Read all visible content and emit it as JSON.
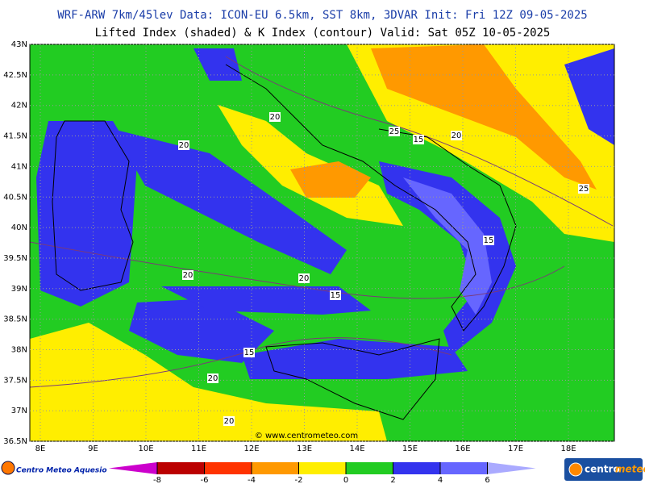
{
  "header": {
    "line1": "WRF-ARW 7km/45lev   Data: ICON-EU 6.5km, SST 8km, 3DVAR   Init: Fri 12Z 09-05-2025",
    "line2": "Lifted Index (shaded) & K Index (contour)   Valid: Sat 05Z 10-05-2025"
  },
  "map": {
    "lat_labels": [
      "43N",
      "42.5N",
      "42N",
      "41.5N",
      "41N",
      "40.5N",
      "40N",
      "39.5N",
      "39N",
      "38.5N",
      "38N",
      "37.5N",
      "37N",
      "36.5N"
    ],
    "lon_labels": [
      "8E",
      "9E",
      "10E",
      "11E",
      "12E",
      "13E",
      "14E",
      "15E",
      "16E",
      "17E",
      "18E"
    ],
    "contour_labels": [
      20,
      25,
      15,
      20,
      20,
      25,
      20,
      20,
      15,
      15,
      15,
      20,
      20
    ],
    "watermark": "© www.centrometeo.com"
  },
  "legend": {
    "colors": [
      "#cc00cc",
      "#bb0000",
      "#ff3300",
      "#ff9900",
      "#ffee00",
      "#22cc22",
      "#3333ee",
      "#6666ff",
      "#aaaaff"
    ],
    "ticks": [
      -8,
      -6,
      -4,
      -2,
      0,
      2,
      4,
      6
    ]
  },
  "logos": {
    "left": "Centro Meteo Aquesio",
    "right_a": "centro",
    "right_b": "meteo"
  }
}
